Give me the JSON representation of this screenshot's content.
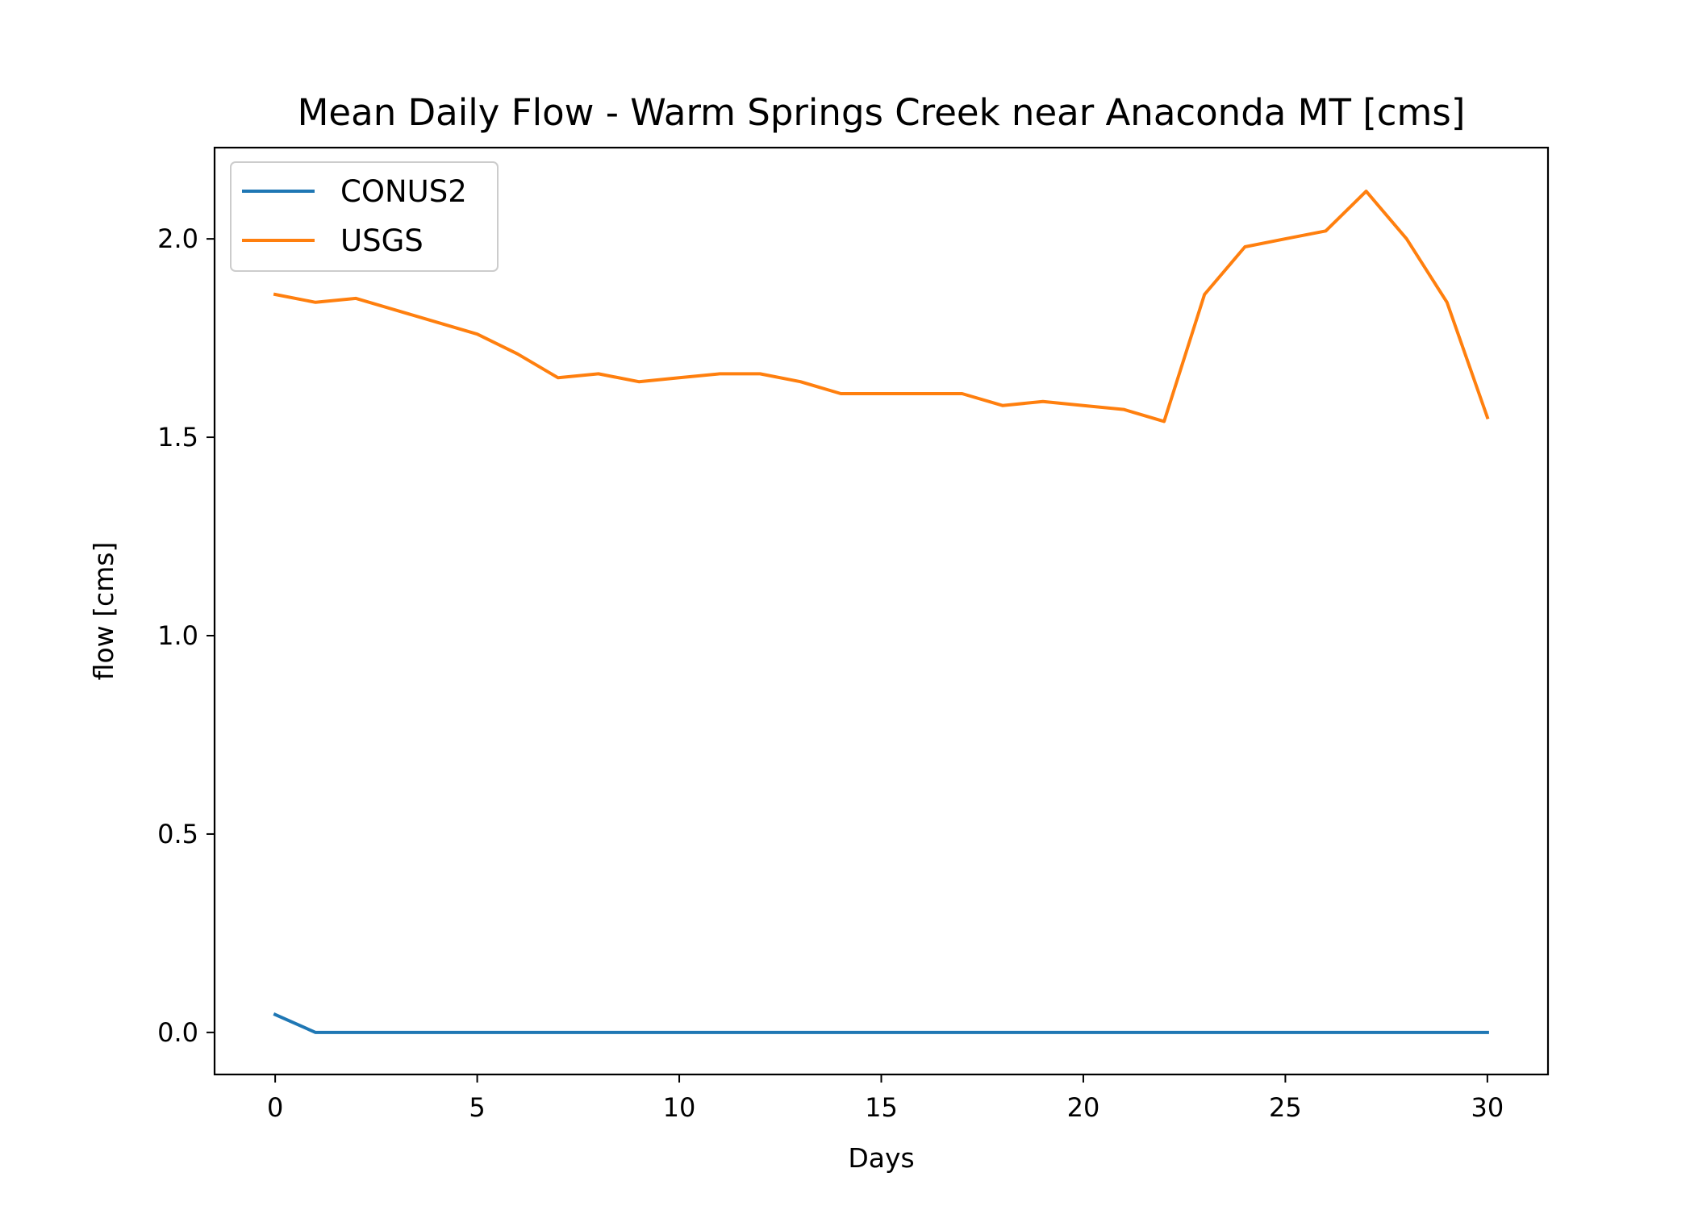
{
  "chart_data": {
    "type": "line",
    "title": "Mean Daily Flow - Warm Springs Creek near Anaconda MT [cms]",
    "xlabel": "Days",
    "ylabel": "flow [cms]",
    "xlim": [
      -1.5,
      31.5
    ],
    "ylim": [
      -0.106,
      2.23
    ],
    "xticks": [
      0,
      5,
      10,
      15,
      20,
      25,
      30
    ],
    "xtick_labels": [
      "0",
      "5",
      "10",
      "15",
      "20",
      "25",
      "30"
    ],
    "yticks": [
      0.0,
      0.5,
      1.0,
      1.5,
      2.0
    ],
    "ytick_labels": [
      "0.0",
      "0.5",
      "1.0",
      "1.5",
      "2.0"
    ],
    "grid": false,
    "legend_position": "top-left",
    "x": [
      0,
      1,
      2,
      3,
      4,
      5,
      6,
      7,
      8,
      9,
      10,
      11,
      12,
      13,
      14,
      15,
      16,
      17,
      18,
      19,
      20,
      21,
      22,
      23,
      24,
      25,
      26,
      27,
      28,
      29,
      30
    ],
    "series": [
      {
        "name": "CONUS2",
        "color": "#1f77b4",
        "values": [
          0.045,
          0,
          0,
          0,
          0,
          0,
          0,
          0,
          0,
          0,
          0,
          0,
          0,
          0,
          0,
          0,
          0,
          0,
          0,
          0,
          0,
          0,
          0,
          0,
          0,
          0,
          0,
          0,
          0,
          0,
          0
        ]
      },
      {
        "name": "USGS",
        "color": "#ff7f0e",
        "values": [
          1.86,
          1.84,
          1.85,
          1.82,
          1.79,
          1.76,
          1.71,
          1.65,
          1.66,
          1.64,
          1.65,
          1.66,
          1.66,
          1.64,
          1.61,
          1.61,
          1.61,
          1.61,
          1.58,
          1.59,
          1.58,
          1.57,
          1.54,
          1.86,
          1.98,
          2.0,
          2.02,
          2.12,
          2.0,
          1.84,
          1.55
        ]
      }
    ]
  }
}
